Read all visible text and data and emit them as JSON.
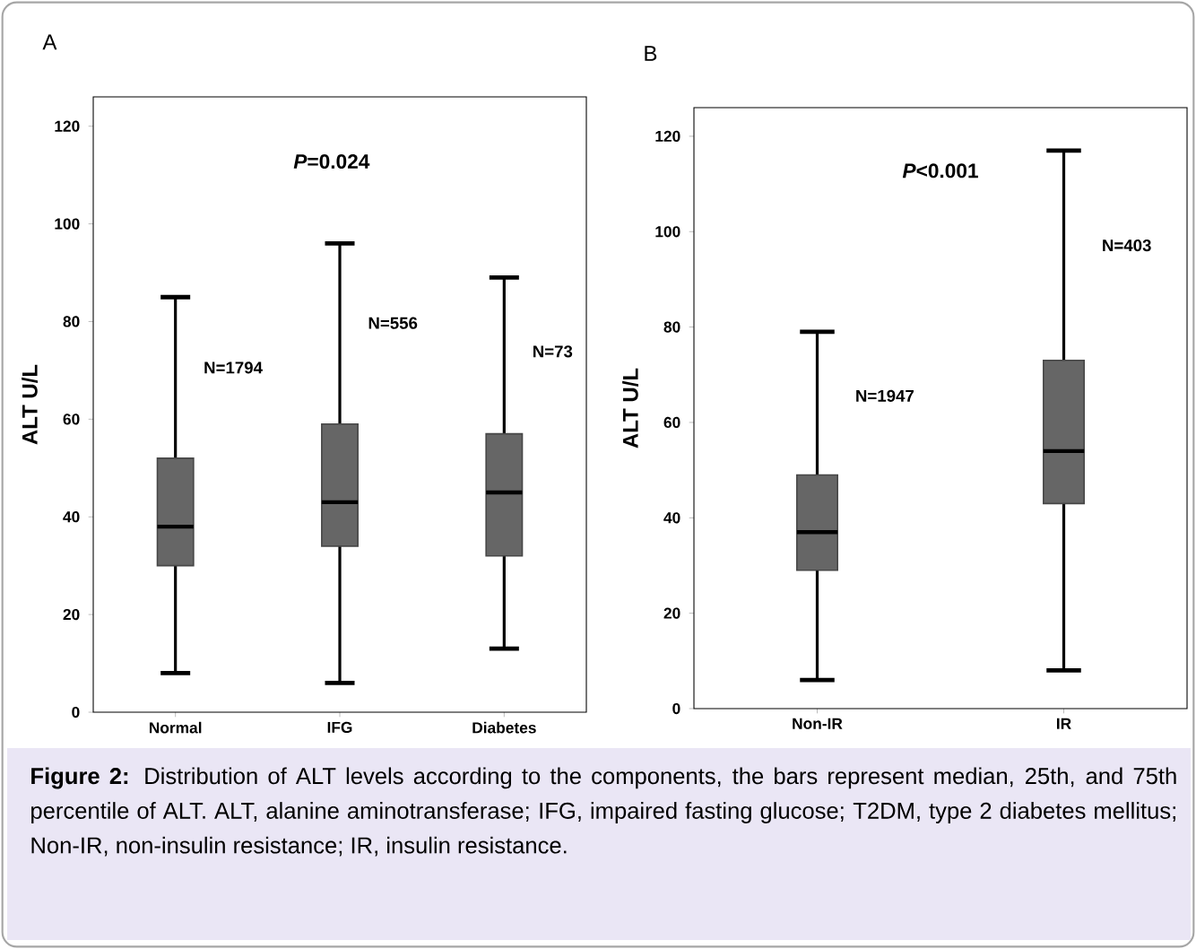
{
  "chart_data": [
    {
      "type": "box",
      "title": "A",
      "ylabel": "ALT U/L",
      "categories": [
        "Normal",
        "IFG",
        "Diabetes"
      ],
      "color": "#666666",
      "boxes": [
        {
          "low": 8,
          "q1": 30,
          "median": 38,
          "q3": 52,
          "high": 85
        },
        {
          "low": 6,
          "q1": 34,
          "median": 43,
          "q3": 59,
          "high": 96
        },
        {
          "low": 13,
          "q1": 32,
          "median": 45,
          "q3": 57,
          "high": 89
        }
      ],
      "ylim": [
        0,
        126
      ],
      "yticks": [
        0,
        20,
        40,
        60,
        80,
        100,
        120
      ],
      "annotations": [
        "*P*=0.024",
        "N=1794",
        "N=556",
        "N=73"
      ]
    },
    {
      "type": "box",
      "title": "B",
      "ylabel": "ALT U/L",
      "categories": [
        "Non-IR",
        "IR"
      ],
      "color": "#666666",
      "boxes": [
        {
          "low": 6,
          "q1": 29,
          "median": 37,
          "q3": 49,
          "high": 79
        },
        {
          "low": 8,
          "q1": 43,
          "median": 54,
          "q3": 73,
          "high": 117
        }
      ],
      "ylim": [
        0,
        126
      ],
      "yticks": [
        0,
        20,
        40,
        60,
        80,
        100,
        120
      ],
      "annotations": [
        "*P*<0.001",
        "N=1947",
        "N=403",
        "**Figure 2:** Distribution of ALT levels according to the components, the bars represent median, 25th, and 75th percentile of ALT. ALT, alanine aminotransferase; IFG, impaired fasting glucose; T2DM, type 2 diabetes mellitus; Non-IR, non-insulin resistance; IR, insulin resistance."
      ]
    }
  ]
}
